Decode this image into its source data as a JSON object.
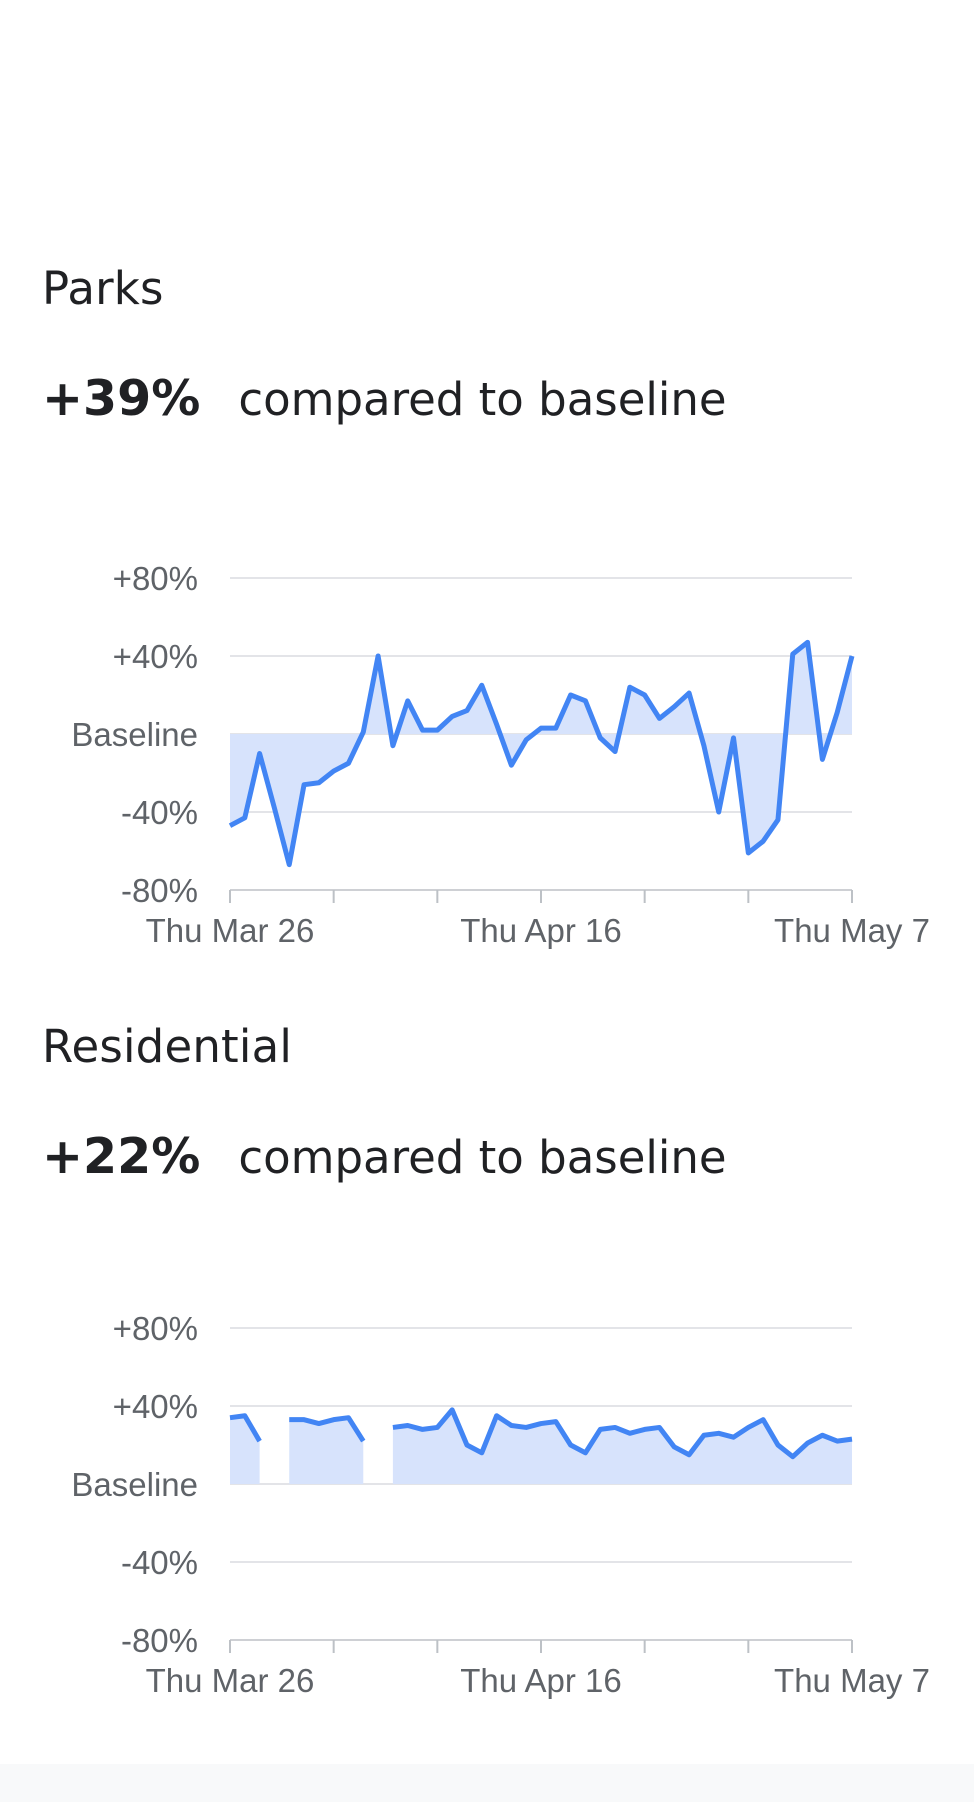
{
  "sections": [
    {
      "title": "Parks",
      "change": "+39%",
      "compare_text": "compared to baseline"
    },
    {
      "title": "Residential",
      "change": "+22%",
      "compare_text": "compared to baseline"
    }
  ],
  "colors": {
    "line": "#4285f4",
    "fill": "#d7e3fc",
    "grid": "#dadce0",
    "axis_text": "#5f6368",
    "text": "#202124"
  },
  "chart_data": [
    {
      "type": "area",
      "y_ticks": [
        "+80%",
        "+40%",
        "Baseline",
        "-40%",
        "-80%"
      ],
      "x_tick_labels": [
        "Thu Mar 26",
        "Thu Apr 16",
        "Thu May 7"
      ],
      "ylim": [
        -80,
        80
      ],
      "x_range_days": [
        0,
        42
      ],
      "series": [
        {
          "values": [
            [
              0,
              -47
            ],
            [
              1,
              -43
            ],
            [
              2,
              -10
            ],
            [
              3,
              -38
            ],
            [
              4,
              -67
            ],
            [
              5,
              -26
            ],
            [
              6,
              -25
            ],
            [
              7,
              -19
            ],
            [
              8,
              -15
            ],
            [
              9,
              1
            ],
            [
              10,
              40
            ],
            [
              11,
              -6
            ],
            [
              12,
              17
            ],
            [
              13,
              2
            ],
            [
              14,
              2
            ],
            [
              15,
              9
            ],
            [
              16,
              12
            ],
            [
              17,
              25
            ],
            [
              18,
              5
            ],
            [
              19,
              -16
            ],
            [
              20,
              -3
            ],
            [
              21,
              3
            ],
            [
              22,
              3
            ],
            [
              23,
              20
            ],
            [
              24,
              17
            ],
            [
              25,
              -2
            ],
            [
              26,
              -9
            ],
            [
              27,
              24
            ],
            [
              28,
              20
            ],
            [
              29,
              8
            ],
            [
              30,
              14
            ],
            [
              31,
              21
            ],
            [
              32,
              -6
            ],
            [
              33,
              -40
            ],
            [
              34,
              -2
            ],
            [
              35,
              -61
            ],
            [
              36,
              -55
            ],
            [
              37,
              -44
            ],
            [
              38,
              41
            ],
            [
              39,
              47
            ],
            [
              40,
              -13
            ],
            [
              41,
              11
            ],
            [
              42,
              40
            ]
          ]
        }
      ],
      "gridlines": true
    },
    {
      "type": "area",
      "y_ticks": [
        "+80%",
        "+40%",
        "Baseline",
        "-40%",
        "-80%"
      ],
      "x_tick_labels": [
        "Thu Mar 26",
        "Thu Apr 16",
        "Thu May 7"
      ],
      "ylim": [
        -80,
        80
      ],
      "x_range_days": [
        0,
        42
      ],
      "series": [
        {
          "values": [
            [
              0,
              34
            ],
            [
              1,
              35
            ],
            [
              2,
              22
            ],
            [
              3,
              null
            ],
            [
              4,
              33
            ],
            [
              5,
              33
            ],
            [
              6,
              31
            ],
            [
              7,
              33
            ],
            [
              8,
              34
            ],
            [
              9,
              22
            ],
            [
              10,
              null
            ],
            [
              11,
              29
            ],
            [
              12,
              30
            ],
            [
              13,
              28
            ],
            [
              14,
              29
            ],
            [
              15,
              38
            ],
            [
              16,
              20
            ],
            [
              17,
              16
            ],
            [
              18,
              35
            ],
            [
              19,
              30
            ],
            [
              20,
              29
            ],
            [
              21,
              31
            ],
            [
              22,
              32
            ],
            [
              23,
              20
            ],
            [
              24,
              16
            ],
            [
              25,
              28
            ],
            [
              26,
              29
            ],
            [
              27,
              26
            ],
            [
              28,
              28
            ],
            [
              29,
              29
            ],
            [
              30,
              19
            ],
            [
              31,
              15
            ],
            [
              32,
              25
            ],
            [
              33,
              26
            ],
            [
              34,
              24
            ],
            [
              35,
              29
            ],
            [
              36,
              33
            ],
            [
              37,
              20
            ],
            [
              38,
              14
            ],
            [
              39,
              21
            ],
            [
              40,
              25
            ],
            [
              41,
              22
            ],
            [
              42,
              23
            ]
          ]
        }
      ],
      "gridlines": true
    }
  ]
}
